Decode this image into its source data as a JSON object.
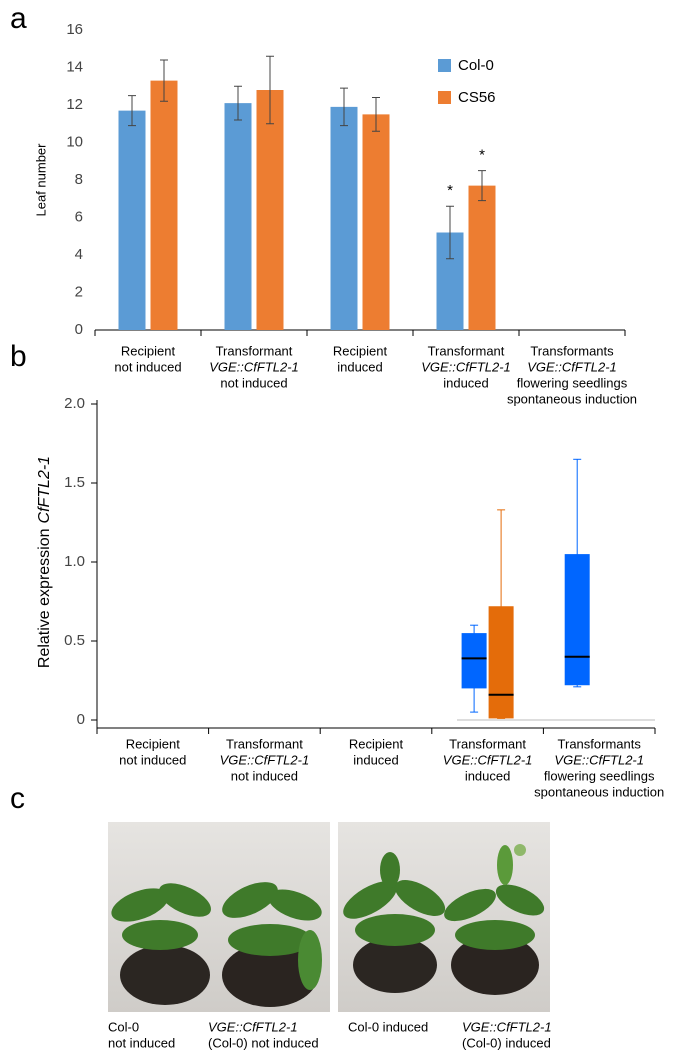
{
  "chart_data": [
    {
      "type": "bar",
      "label": "a",
      "ylabel": "Leaf number",
      "categories": [
        [
          {
            "text": "Recipient",
            "italic": false
          },
          {
            "text": "not induced",
            "italic": false
          }
        ],
        [
          {
            "text": "Transformant",
            "italic": false
          },
          {
            "text": "VGE::CfFTL2-1",
            "italic": true
          },
          {
            "text": "not induced",
            "italic": false
          }
        ],
        [
          {
            "text": "Recipient",
            "italic": false
          },
          {
            "text": "induced",
            "italic": false
          }
        ],
        [
          {
            "text": "Transformant",
            "italic": false
          },
          {
            "text": "VGE::CfFTL2-1",
            "italic": true
          },
          {
            "text": "induced",
            "italic": false
          }
        ],
        [
          {
            "text": "Transformants",
            "italic": false
          },
          {
            "text": "VGE::CfFTL2-1",
            "italic": true
          },
          {
            "text": "flowering seedlings",
            "italic": false
          },
          {
            "text": "spontaneous  induction",
            "italic": false
          }
        ]
      ],
      "series": [
        {
          "name": "Col-0",
          "color": "#5b9bd5",
          "values": [
            11.7,
            12.1,
            11.9,
            5.2,
            null
          ],
          "errors": [
            0.8,
            0.9,
            1.0,
            1.4,
            null
          ],
          "markers": [
            null,
            null,
            null,
            "*",
            null
          ]
        },
        {
          "name": "CS56",
          "color": "#ed7d31",
          "values": [
            13.3,
            12.8,
            11.5,
            7.7,
            null
          ],
          "errors": [
            1.1,
            1.8,
            0.9,
            0.8,
            null
          ],
          "markers": [
            null,
            null,
            null,
            "*",
            null
          ]
        }
      ],
      "ylim": [
        0,
        16
      ],
      "yticks": [
        0,
        2,
        4,
        6,
        8,
        10,
        12,
        14,
        16
      ],
      "legend": "upper right"
    },
    {
      "type": "box",
      "label": "b",
      "ylabel": {
        "text": "Relative expression",
        "gene": "CfFTL2-1"
      },
      "categories": [
        [
          {
            "text": "Recipient",
            "italic": false
          },
          {
            "text": "not induced",
            "italic": false
          }
        ],
        [
          {
            "text": "Transformant",
            "italic": false
          },
          {
            "text": "VGE::CfFTL2-1",
            "italic": true
          },
          {
            "text": "not induced",
            "italic": false
          }
        ],
        [
          {
            "text": "Recipient",
            "italic": false
          },
          {
            "text": "induced",
            "italic": false
          }
        ],
        [
          {
            "text": "Transformant",
            "italic": false
          },
          {
            "text": "VGE::CfFTL2-1",
            "italic": true
          },
          {
            "text": "induced",
            "italic": false
          }
        ],
        [
          {
            "text": "Transformants",
            "italic": false
          },
          {
            "text": "VGE::CfFTL2-1",
            "italic": true
          },
          {
            "text": "flowering seedlings",
            "italic": false
          },
          {
            "text": "spontaneous  induction",
            "italic": false
          }
        ]
      ],
      "series": [
        {
          "color": "#0066ff",
          "boxes": [
            null,
            null,
            null,
            {
              "min": 0.05,
              "q1": 0.2,
              "median": 0.39,
              "q3": 0.55,
              "max": 0.6
            },
            {
              "min": 0.21,
              "q1": 0.22,
              "median": 0.4,
              "q3": 1.05,
              "max": 1.65
            }
          ]
        },
        {
          "color": "#e46c0a",
          "boxes": [
            null,
            null,
            null,
            {
              "min": 0.01,
              "q1": 0.01,
              "median": 0.16,
              "q3": 0.72,
              "max": 1.33
            },
            null
          ]
        }
      ],
      "ylim": [
        0,
        2
      ],
      "yticks": [
        0,
        0.5,
        {
          "value": 1,
          "label": "1.0"
        },
        1.5,
        {
          "value": 2,
          "label": "2.0"
        }
      ]
    }
  ],
  "panel_c": {
    "label": "c",
    "captions": [
      [
        {
          "text": "Col-0",
          "italic": false
        },
        {
          "text": "not induced",
          "italic": false
        }
      ],
      [
        {
          "text": "VGE::CfFTL2-1",
          "italic": true
        },
        {
          "text": "(Col-0) not induced",
          "italic": false
        }
      ],
      [
        {
          "text": "Col-0 induced",
          "italic": false
        }
      ],
      [
        {
          "text": "VGE::CfFTL2-1",
          "italic": true
        },
        {
          "text": "(Col-0) induced",
          "italic": false
        }
      ]
    ]
  }
}
